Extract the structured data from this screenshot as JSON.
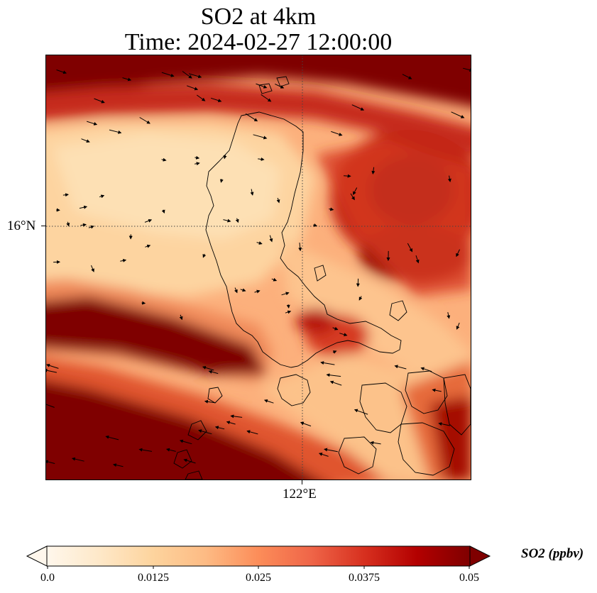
{
  "title": {
    "line1": "SO2 at 4km",
    "line2": "Time: 2024-02-27 12:00:00"
  },
  "map": {
    "lat_tick": "16°N",
    "lon_tick": "122°E",
    "colormap": [
      "#fff7ec",
      "#fee8c8",
      "#fdd49e",
      "#fdbb84",
      "#fc8d59",
      "#ef6548",
      "#d7301f",
      "#b30000",
      "#7f0000"
    ]
  },
  "colorbar": {
    "label": "SO2 (ppbv)",
    "min": 0.0,
    "max": 0.05,
    "ticks": [
      "0.0",
      "0.0125",
      "0.025",
      "0.0375",
      "0.05"
    ],
    "extend": "both"
  }
}
